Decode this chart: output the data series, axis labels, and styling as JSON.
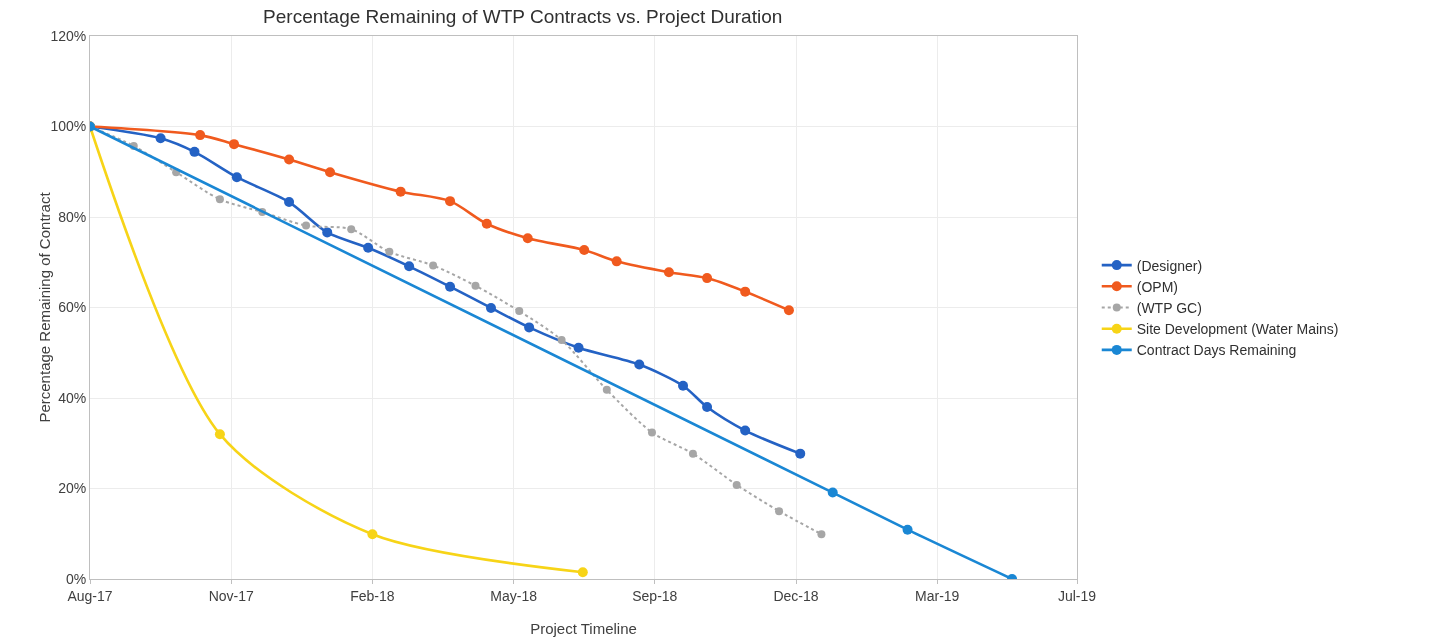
{
  "chart_data": {
    "type": "line",
    "title": "Percentage Remaining of WTP Contracts vs. Project Duration",
    "xlabel": "Project Timeline",
    "ylabel": "Percentage Remaining of Contract",
    "series": [
      {
        "name": "(Designer)",
        "color": "#2462c4",
        "line_style": "solid",
        "x": [
          "2017-08-01",
          "2017-09-20",
          "2017-10-14",
          "2017-11-13",
          "2017-12-20",
          "2018-01-16",
          "2018-02-14",
          "2018-03-15",
          "2018-04-13",
          "2018-05-12",
          "2018-06-08",
          "2018-07-13",
          "2018-08-25",
          "2018-09-25",
          "2018-10-12",
          "2018-11-08",
          "2018-12-17"
        ],
        "values": [
          100,
          97.4,
          94.4,
          88.8,
          83.3,
          76.6,
          73.2,
          69.1,
          64.6,
          59.9,
          55.6,
          51.1,
          47.4,
          42.7,
          38,
          32.8,
          27.7
        ]
      },
      {
        "name": "(OPM)",
        "color": "#f05a1e",
        "line_style": "solid",
        "x": [
          "2017-08-01",
          "2017-10-18",
          "2017-11-11",
          "2017-12-20",
          "2018-01-18",
          "2018-03-09",
          "2018-04-13",
          "2018-05-09",
          "2018-06-07",
          "2018-07-17",
          "2018-08-09",
          "2018-09-15",
          "2018-10-12",
          "2018-11-08",
          "2018-12-09"
        ],
        "values": [
          100,
          98.1,
          96.1,
          92.7,
          89.9,
          85.6,
          83.5,
          78.5,
          75.3,
          72.7,
          70.2,
          67.8,
          66.5,
          63.5,
          59.4
        ]
      },
      {
        "name": "(WTP GC)",
        "color": "#a6a6a6",
        "line_style": "dotted",
        "x": [
          "2017-08-01",
          "2017-09-01",
          "2017-10-01",
          "2017-11-01",
          "2017-12-01",
          "2018-01-01",
          "2018-02-02",
          "2018-03-01",
          "2018-04-01",
          "2018-05-01",
          "2018-06-01",
          "2018-07-01",
          "2018-08-02",
          "2018-09-03",
          "2018-10-02",
          "2018-11-02",
          "2018-12-02",
          "2019-01-01"
        ],
        "values": [
          100,
          95.7,
          89.9,
          83.9,
          81.1,
          78.1,
          77.3,
          72.3,
          69.3,
          64.8,
          59.2,
          52.8,
          41.8,
          32.4,
          27.7,
          20.8,
          15,
          9.9
        ]
      },
      {
        "name": "Site Development (Water Mains)",
        "color": "#f7d417",
        "line_style": "solid",
        "x": [
          "2017-08-01",
          "2017-11-01",
          "2018-02-17",
          "2018-07-16"
        ],
        "values": [
          100,
          32,
          9.9,
          1.5
        ]
      },
      {
        "name": "Contract Days Remaining",
        "color": "#1a87d4",
        "line_style": "solid",
        "x": [
          "2017-08-01",
          "2019-01-09",
          "2019-03-03",
          "2019-05-16"
        ],
        "values": [
          100,
          19.1,
          10.9,
          0
        ]
      }
    ],
    "xlim": [
      "2017-08-01",
      "2019-07-01"
    ],
    "xticks": [
      {
        "value": "2017-08-01",
        "label": "Aug-17"
      },
      {
        "value": "2017-11-09",
        "label": "Nov-17"
      },
      {
        "value": "2018-02-17",
        "label": "Feb-18"
      },
      {
        "value": "2018-05-28",
        "label": "May-18"
      },
      {
        "value": "2018-09-05",
        "label": "Sep-18"
      },
      {
        "value": "2018-12-14",
        "label": "Dec-18"
      },
      {
        "value": "2019-03-24",
        "label": "Mar-19"
      },
      {
        "value": "2019-07-01",
        "label": "Jul-19"
      }
    ],
    "ylim": [
      0,
      120
    ],
    "yticks": [
      {
        "value": 0,
        "label": "0%"
      },
      {
        "value": 20,
        "label": "20%"
      },
      {
        "value": 40,
        "label": "40%"
      },
      {
        "value": 60,
        "label": "60%"
      },
      {
        "value": 80,
        "label": "80%"
      },
      {
        "value": 100,
        "label": "100%"
      },
      {
        "value": 120,
        "label": "120%"
      }
    ],
    "grid": true,
    "legend": "right",
    "marker": "circle"
  }
}
